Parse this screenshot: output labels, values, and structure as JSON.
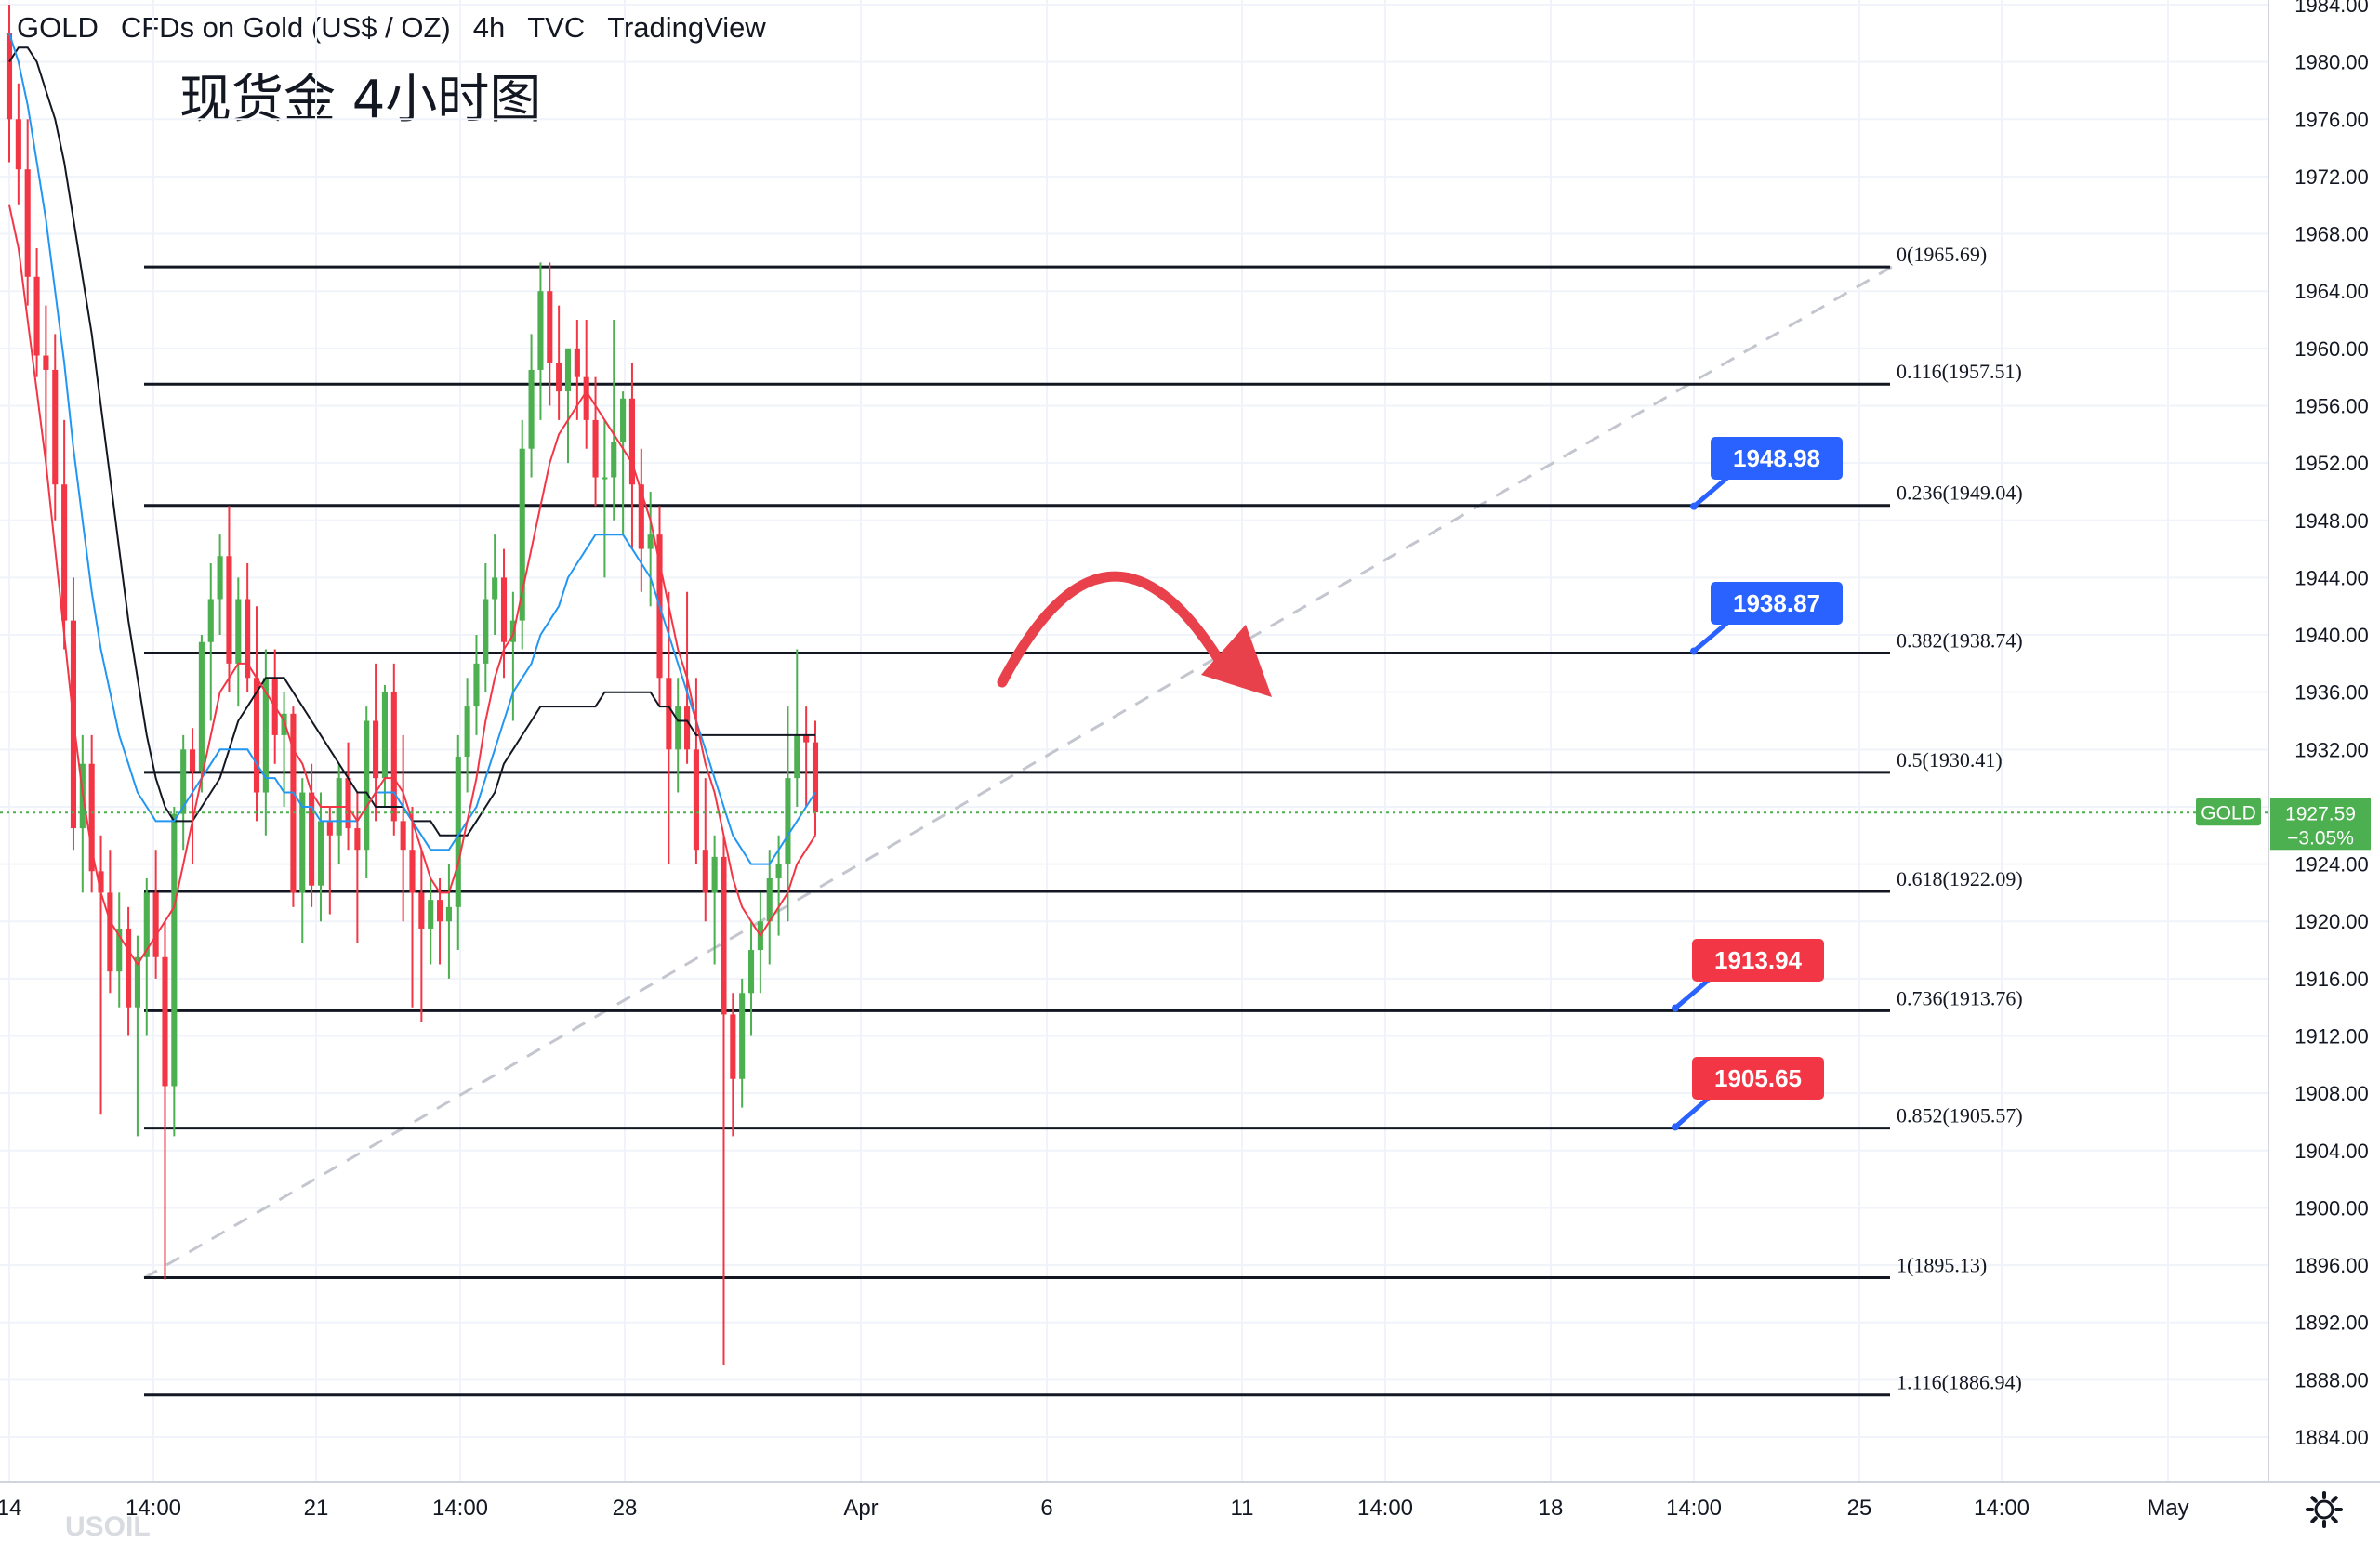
{
  "header": {
    "symbol": "GOLD",
    "name": "CFDs on Gold (US$ / OZ)",
    "interval": "4h",
    "exchange": "TVC",
    "source": "TradingView"
  },
  "annotation_title": "现货金 4小时图",
  "watermark": "USOIL",
  "current_price": {
    "symbol": "GOLD",
    "price": "1927.59",
    "change": "−3.05%",
    "color": "#4caf50"
  },
  "colors": {
    "bull": "#4caf50",
    "bear": "#f23645",
    "ma_fast": "#f23645",
    "ma_mid": "#2196f3",
    "ma_slow": "#131722",
    "callout_blue": "#2962ff",
    "callout_red": "#f23645",
    "arrow": "#e9414b"
  },
  "chart_data": {
    "type": "candlestick",
    "title": "GOLD · CFDs on Gold (US$ / OZ) · 4h · TVC",
    "ylim": [
      1884,
      1984
    ],
    "y_ticks": [
      "1884.00",
      "1888.00",
      "1892.00",
      "1896.00",
      "1900.00",
      "1904.00",
      "1908.00",
      "1912.00",
      "1916.00",
      "1920.00",
      "1924.00",
      "1928.00",
      "1932.00",
      "1936.00",
      "1940.00",
      "1944.00",
      "1948.00",
      "1952.00",
      "1956.00",
      "1960.00",
      "1964.00",
      "1968.00",
      "1972.00",
      "1976.00",
      "1980.00",
      "1984.00"
    ],
    "x_ticks": [
      "14",
      "14:00",
      "21",
      "14:00",
      "28",
      "Apr",
      "6",
      "11",
      "14:00",
      "18",
      "14:00",
      "25",
      "14:00",
      "May"
    ],
    "ohlc": [
      [
        1982.0,
        1984.0,
        1973.0,
        1976.0
      ],
      [
        1976.0,
        1978.5,
        1970.0,
        1972.5
      ],
      [
        1972.5,
        1976.0,
        1963.0,
        1965.0
      ],
      [
        1965.0,
        1967.0,
        1958.0,
        1959.5
      ],
      [
        1959.5,
        1963.0,
        1952.0,
        1958.5
      ],
      [
        1958.5,
        1961.0,
        1948.0,
        1950.5
      ],
      [
        1950.5,
        1955.0,
        1939.0,
        1941.0
      ],
      [
        1941.0,
        1944.0,
        1925.0,
        1926.5
      ],
      [
        1926.5,
        1933.0,
        1922.0,
        1931.0
      ],
      [
        1931.0,
        1933.0,
        1922.0,
        1923.5
      ],
      [
        1923.5,
        1926.0,
        1906.5,
        1922.0
      ],
      [
        1922.0,
        1925.0,
        1915.0,
        1916.5
      ],
      [
        1916.5,
        1922.0,
        1914.0,
        1919.5
      ],
      [
        1919.5,
        1921.0,
        1912.0,
        1914.0
      ],
      [
        1914.0,
        1919.0,
        1905.0,
        1917.5
      ],
      [
        1917.5,
        1923.0,
        1912.0,
        1922.0
      ],
      [
        1922.0,
        1925.0,
        1916.0,
        1917.5
      ],
      [
        1917.5,
        1920.0,
        1895.0,
        1908.5
      ],
      [
        1908.5,
        1928.0,
        1905.0,
        1927.5
      ],
      [
        1927.5,
        1933.0,
        1925.0,
        1932.0
      ],
      [
        1932.0,
        1933.5,
        1924.0,
        1930.5
      ],
      [
        1930.5,
        1940.0,
        1929.0,
        1939.5
      ],
      [
        1939.5,
        1945.0,
        1934.0,
        1942.5
      ],
      [
        1942.5,
        1947.0,
        1940.0,
        1945.5
      ],
      [
        1945.5,
        1949.0,
        1936.0,
        1938.0
      ],
      [
        1938.0,
        1944.0,
        1935.0,
        1942.5
      ],
      [
        1942.5,
        1945.0,
        1936.0,
        1937.0
      ],
      [
        1937.0,
        1942.0,
        1927.0,
        1929.0
      ],
      [
        1929.0,
        1939.0,
        1926.0,
        1937.0
      ],
      [
        1937.0,
        1939.0,
        1931.0,
        1933.0
      ],
      [
        1933.0,
        1936.0,
        1928.0,
        1934.5
      ],
      [
        1934.5,
        1935.0,
        1921.0,
        1922.0
      ],
      [
        1922.0,
        1930.0,
        1918.5,
        1929.0
      ],
      [
        1929.0,
        1931.0,
        1921.0,
        1922.5
      ],
      [
        1922.5,
        1929.0,
        1920.0,
        1927.0
      ],
      [
        1927.0,
        1928.0,
        1920.5,
        1926.0
      ],
      [
        1926.0,
        1931.0,
        1924.0,
        1930.0
      ],
      [
        1930.0,
        1932.5,
        1925.0,
        1926.5
      ],
      [
        1926.5,
        1929.0,
        1918.5,
        1925.0
      ],
      [
        1925.0,
        1935.0,
        1923.0,
        1934.0
      ],
      [
        1934.0,
        1938.0,
        1927.0,
        1930.0
      ],
      [
        1930.0,
        1936.5,
        1928.0,
        1936.0
      ],
      [
        1936.0,
        1938.0,
        1926.0,
        1927.0
      ],
      [
        1927.0,
        1933.0,
        1920.0,
        1925.0
      ],
      [
        1925.0,
        1928.0,
        1914.0,
        1922.0
      ],
      [
        1922.0,
        1925.0,
        1913.0,
        1919.5
      ],
      [
        1919.5,
        1923.0,
        1917.0,
        1921.5
      ],
      [
        1921.5,
        1923.0,
        1917.0,
        1920.0
      ],
      [
        1920.0,
        1924.0,
        1916.0,
        1921.0
      ],
      [
        1921.0,
        1933.0,
        1918.0,
        1931.5
      ],
      [
        1931.5,
        1937.0,
        1929.0,
        1935.0
      ],
      [
        1935.0,
        1940.0,
        1933.0,
        1938.0
      ],
      [
        1938.0,
        1945.0,
        1936.0,
        1942.5
      ],
      [
        1942.5,
        1947.0,
        1940.0,
        1944.0
      ],
      [
        1944.0,
        1946.0,
        1937.0,
        1939.5
      ],
      [
        1939.5,
        1943.0,
        1934.0,
        1941.0
      ],
      [
        1941.0,
        1955.0,
        1939.0,
        1953.0
      ],
      [
        1953.0,
        1961.0,
        1951.0,
        1958.5
      ],
      [
        1958.5,
        1966.0,
        1955.0,
        1964.0
      ],
      [
        1964.0,
        1966.0,
        1956.0,
        1959.0
      ],
      [
        1959.0,
        1963.0,
        1955.0,
        1957.0
      ],
      [
        1957.0,
        1960.0,
        1952.0,
        1960.0
      ],
      [
        1960.0,
        1962.0,
        1955.0,
        1958.0
      ],
      [
        1958.0,
        1962.0,
        1953.0,
        1955.0
      ],
      [
        1955.0,
        1958.0,
        1949.0,
        1951.0
      ],
      [
        1951.0,
        1955.0,
        1944.0,
        1951.0
      ],
      [
        1951.0,
        1962.0,
        1948.0,
        1953.5
      ],
      [
        1953.5,
        1957.0,
        1947.0,
        1956.5
      ],
      [
        1956.5,
        1959.0,
        1946.0,
        1950.5
      ],
      [
        1950.5,
        1953.0,
        1943.0,
        1946.0
      ],
      [
        1946.0,
        1950.0,
        1942.0,
        1947.0
      ],
      [
        1947.0,
        1949.0,
        1935.0,
        1937.0
      ],
      [
        1937.0,
        1943.0,
        1924.0,
        1932.0
      ],
      [
        1932.0,
        1937.0,
        1929.0,
        1935.0
      ],
      [
        1935.0,
        1943.0,
        1931.0,
        1932.0
      ],
      [
        1932.0,
        1937.0,
        1924.0,
        1925.0
      ],
      [
        1925.0,
        1930.0,
        1920.0,
        1922.0
      ],
      [
        1922.0,
        1926.0,
        1917.0,
        1924.5
      ],
      [
        1924.5,
        1926.0,
        1889.0,
        1913.5
      ],
      [
        1913.5,
        1915.0,
        1905.0,
        1909.0
      ],
      [
        1909.0,
        1916.0,
        1907.0,
        1915.0
      ],
      [
        1915.0,
        1920.0,
        1912.0,
        1918.0
      ],
      [
        1918.0,
        1922.0,
        1915.0,
        1920.0
      ],
      [
        1920.0,
        1925.0,
        1917.0,
        1923.0
      ],
      [
        1923.0,
        1926.0,
        1919.0,
        1924.0
      ],
      [
        1924.0,
        1935.0,
        1920.0,
        1930.0
      ],
      [
        1930.0,
        1939.0,
        1928.0,
        1933.0
      ],
      [
        1933.0,
        1935.0,
        1928.0,
        1932.5
      ],
      [
        1932.5,
        1934.0,
        1926.0,
        1927.6
      ]
    ],
    "ma_fast": [
      1970,
      1967,
      1962,
      1957,
      1952,
      1946,
      1940,
      1934,
      1929,
      1925,
      1922,
      1920,
      1919,
      1918,
      1917,
      1918,
      1919,
      1920,
      1921,
      1924,
      1927,
      1930,
      1933,
      1936,
      1937,
      1938,
      1938,
      1937,
      1936,
      1935,
      1934,
      1932,
      1931,
      1929,
      1928,
      1928,
      1928,
      1928,
      1927,
      1928,
      1929,
      1930,
      1930,
      1929,
      1927,
      1925,
      1923,
      1922,
      1922,
      1924,
      1927,
      1930,
      1934,
      1937,
      1939,
      1940,
      1943,
      1946,
      1949,
      1952,
      1954,
      1955,
      1956,
      1957,
      1956,
      1955,
      1954,
      1953,
      1952,
      1950,
      1948,
      1945,
      1942,
      1939,
      1937,
      1934,
      1931,
      1929,
      1926,
      1923,
      1921,
      1920,
      1919,
      1920,
      1921,
      1922,
      1924,
      1925,
      1926
    ],
    "ma_mid": [
      1982,
      1980,
      1977,
      1973,
      1969,
      1964,
      1959,
      1953,
      1948,
      1943,
      1939,
      1936,
      1933,
      1931,
      1929,
      1928,
      1927,
      1927,
      1927,
      1928,
      1929,
      1930,
      1931,
      1932,
      1932,
      1932,
      1932,
      1931,
      1930,
      1930,
      1929,
      1929,
      1928,
      1928,
      1927,
      1927,
      1927,
      1927,
      1927,
      1928,
      1929,
      1929,
      1929,
      1928,
      1927,
      1926,
      1925,
      1925,
      1925,
      1926,
      1927,
      1928,
      1930,
      1932,
      1934,
      1936,
      1937,
      1938,
      1940,
      1941,
      1942,
      1944,
      1945,
      1946,
      1947,
      1947,
      1947,
      1947,
      1946,
      1945,
      1944,
      1942,
      1940,
      1938,
      1936,
      1934,
      1932,
      1930,
      1928,
      1926,
      1925,
      1924,
      1924,
      1924,
      1925,
      1926,
      1927,
      1928,
      1929
    ],
    "ma_slow": [
      1980,
      1981,
      1981,
      1980,
      1978,
      1976,
      1973,
      1969,
      1965,
      1961,
      1956,
      1951,
      1946,
      1941,
      1937,
      1933,
      1930,
      1928,
      1927,
      1927,
      1927,
      1928,
      1929,
      1930,
      1932,
      1934,
      1935,
      1936,
      1937,
      1937,
      1937,
      1936,
      1935,
      1934,
      1933,
      1932,
      1931,
      1930,
      1929,
      1929,
      1928,
      1928,
      1928,
      1928,
      1927,
      1927,
      1927,
      1926,
      1926,
      1926,
      1926,
      1927,
      1928,
      1929,
      1931,
      1932,
      1933,
      1934,
      1935,
      1935,
      1935,
      1935,
      1935,
      1935,
      1935,
      1936,
      1936,
      1936,
      1936,
      1936,
      1936,
      1935,
      1935,
      1934,
      1934,
      1933,
      1933,
      1933,
      1933,
      1933,
      1933,
      1933,
      1933,
      1933,
      1933,
      1933,
      1933,
      1933,
      1933
    ],
    "fibonacci": [
      {
        "ratio": "0",
        "price": "1965.69",
        "label": "0(1965.69)"
      },
      {
        "ratio": "0.116",
        "price": "1957.51",
        "label": "0.116(1957.51)"
      },
      {
        "ratio": "0.236",
        "price": "1949.04",
        "label": "0.236(1949.04)"
      },
      {
        "ratio": "0.382",
        "price": "1938.74",
        "label": "0.382(1938.74)"
      },
      {
        "ratio": "0.5",
        "price": "1930.41",
        "label": "0.5(1930.41)"
      },
      {
        "ratio": "0.618",
        "price": "1922.09",
        "label": "0.618(1922.09)"
      },
      {
        "ratio": "0.736",
        "price": "1913.76",
        "label": "0.736(1913.76)"
      },
      {
        "ratio": "0.852",
        "price": "1905.57",
        "label": "0.852(1905.57)"
      },
      {
        "ratio": "1",
        "price": "1895.13",
        "label": "1(1895.13)"
      },
      {
        "ratio": "1.116",
        "price": "1886.94",
        "label": "1.116(1886.94)"
      }
    ],
    "callouts": [
      {
        "text": "1948.98",
        "price": 1948.98,
        "color": "blue"
      },
      {
        "text": "1938.87",
        "price": 1938.87,
        "color": "blue"
      },
      {
        "text": "1913.94",
        "price": 1913.94,
        "color": "red"
      },
      {
        "text": "1905.65",
        "price": 1905.65,
        "color": "red"
      }
    ],
    "trendline": {
      "from_price": 1895.1,
      "to_price": 1965.7,
      "style": "dashed"
    },
    "forecast_arrow": "curved down"
  }
}
